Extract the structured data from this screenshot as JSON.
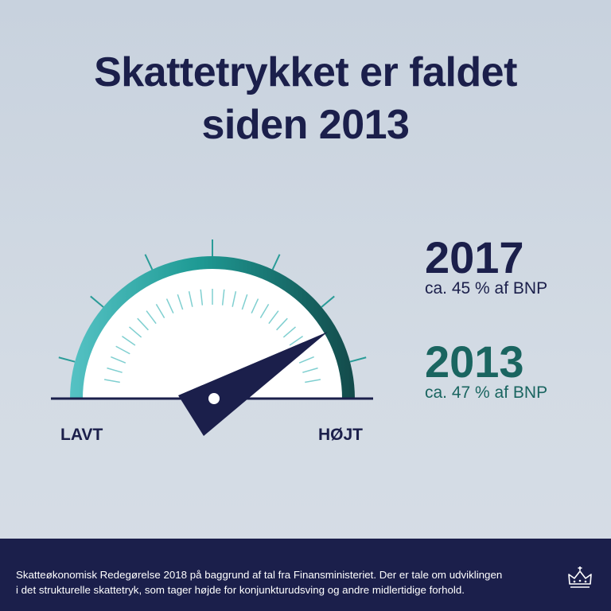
{
  "title": {
    "line1": "Skattetrykket er faldet",
    "line2": "siden 2013"
  },
  "gauge": {
    "low_label": "LAVT",
    "high_label": "HØJT",
    "colors": {
      "arc_start": "#55c2c4",
      "arc_mid": "#1e9a94",
      "arc_end": "#134a4a",
      "needle": "#1b1f4b",
      "face": "#ffffff",
      "ticks": "#5fbfc0"
    }
  },
  "stats": [
    {
      "year": "2017",
      "text": "ca. 45 % af BNP",
      "color": "#1b1f4b"
    },
    {
      "year": "2013",
      "text": "ca. 47 % af BNP",
      "color": "#1a6560"
    }
  ],
  "footer": {
    "line1": "Skatteøkonomisk Redegørelse 2018 på baggrund af tal fra Finansministeriet. Der er tale om udviklingen",
    "line2": "i det strukturelle skattetryk, som tager højde for konjunkturudsving og andre midlertidige forhold.",
    "logo_icon": "crown-icon"
  }
}
